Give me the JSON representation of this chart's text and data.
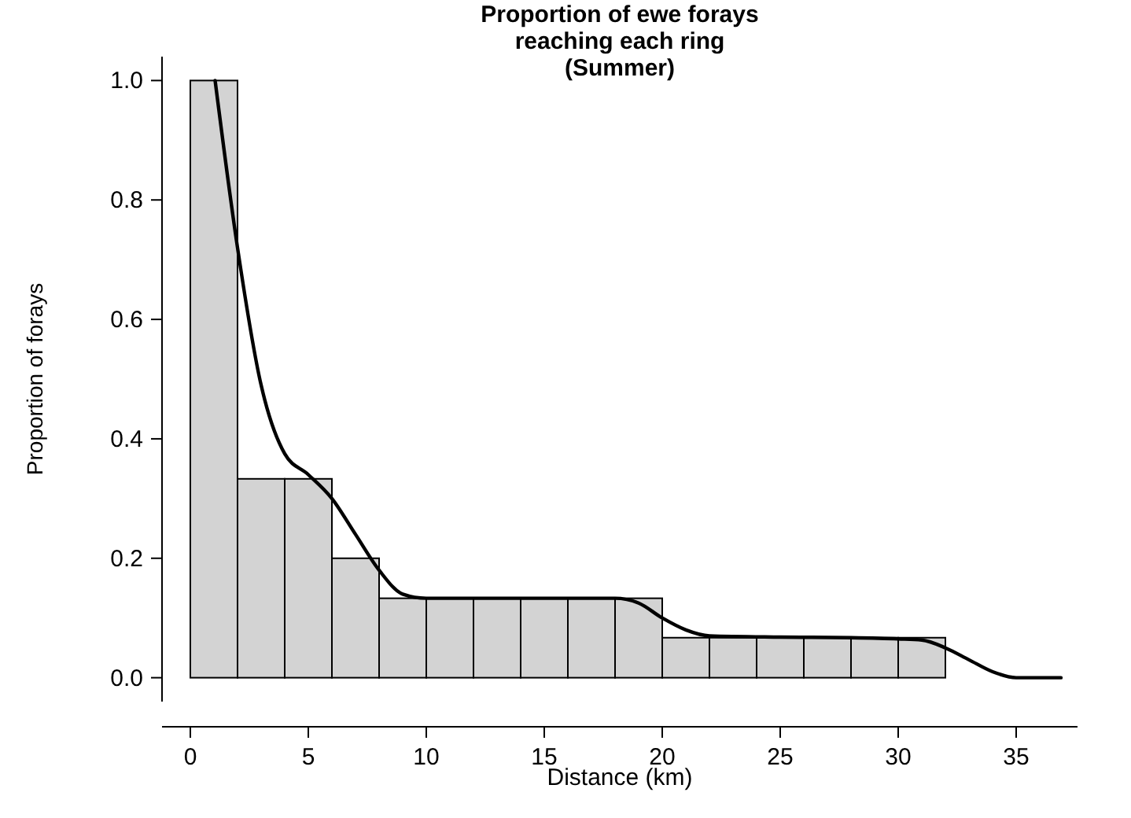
{
  "chart_data": {
    "type": "histogram",
    "title": "Proportion of ewe forays\nreaching each ring\n(Summer)",
    "xlabel": "Distance (km)",
    "ylabel": "Proportion of forays",
    "bins": [
      0,
      2,
      4,
      6,
      8,
      10,
      12,
      14,
      16,
      18,
      20,
      22,
      24,
      26,
      28,
      30,
      32
    ],
    "values": [
      1.0,
      0.333,
      0.333,
      0.2,
      0.133,
      0.133,
      0.133,
      0.133,
      0.133,
      0.133,
      0.067,
      0.067,
      0.067,
      0.067,
      0.067,
      0.067
    ],
    "color": "#d3d3d3",
    "series": [
      {
        "type": "line",
        "color": "#000000",
        "x": [
          1.05,
          2,
          3,
          4,
          5,
          6,
          7,
          8,
          9,
          10,
          12,
          15,
          18,
          19,
          20,
          21,
          22,
          25,
          28,
          30,
          31,
          32,
          33,
          34,
          35,
          36.9
        ],
        "values": [
          1.0,
          0.72,
          0.49,
          0.375,
          0.34,
          0.3,
          0.24,
          0.18,
          0.14,
          0.133,
          0.133,
          0.133,
          0.133,
          0.125,
          0.1,
          0.08,
          0.07,
          0.068,
          0.067,
          0.065,
          0.063,
          0.05,
          0.03,
          0.01,
          0.0,
          0.0
        ]
      }
    ],
    "xlim": [
      -1.2,
      37.6
    ],
    "ylim": [
      -0.04,
      1.04
    ],
    "xticks": [
      0,
      5,
      10,
      15,
      20,
      25,
      30,
      35
    ],
    "yticks": [
      {
        "value": 0,
        "label": "0.0"
      },
      {
        "value": 0.2,
        "label": "0.2"
      },
      {
        "value": 0.4,
        "label": "0.4"
      },
      {
        "value": 0.6,
        "label": "0.6"
      },
      {
        "value": 0.8,
        "label": "0.8"
      },
      {
        "value": 1,
        "label": "1.0"
      }
    ]
  }
}
